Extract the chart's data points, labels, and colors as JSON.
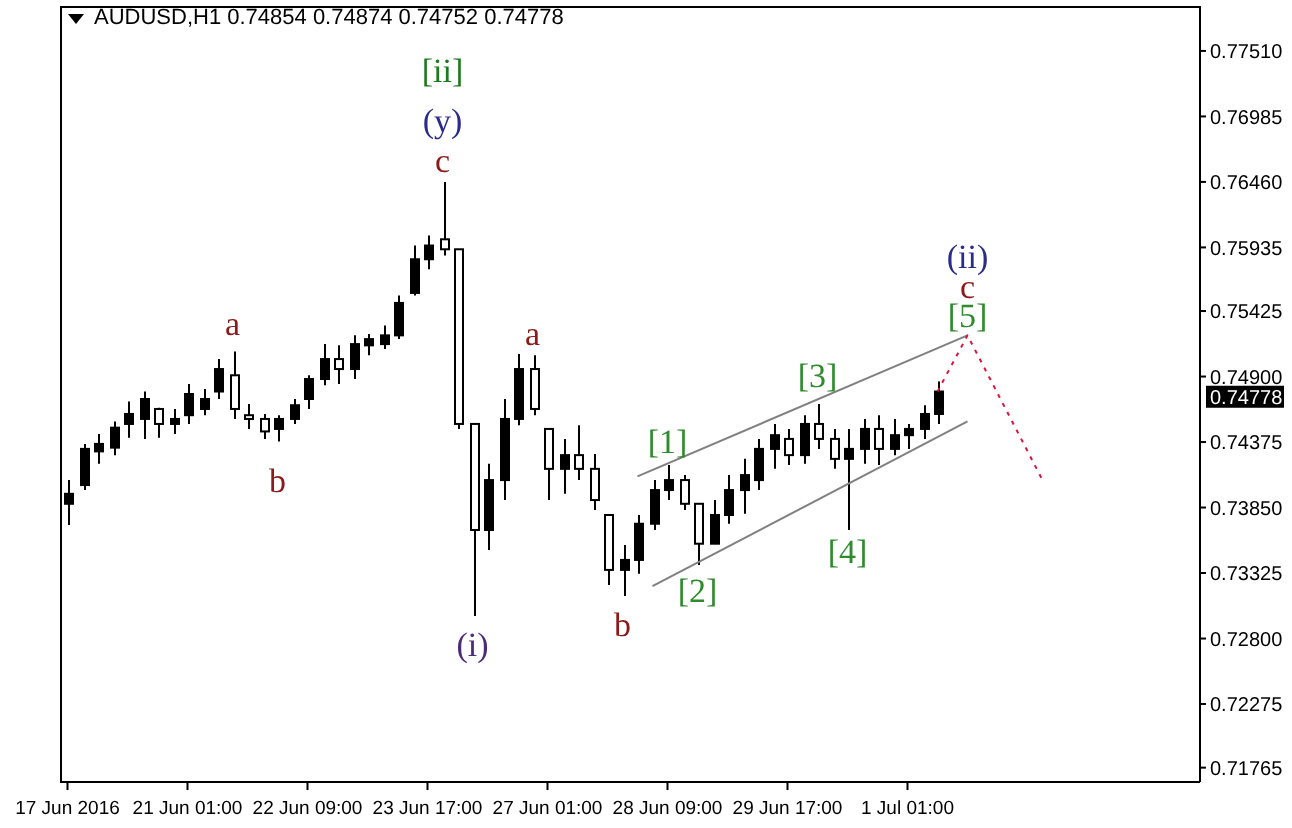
{
  "chart_data": {
    "type": "candlestick",
    "title": "AUDUSD,H1 0.74854 0.74874 0.74752 0.74778",
    "color": "#000000",
    "categories": [
      "17 Jun 2016",
      null,
      null,
      null,
      null,
      null,
      null,
      null,
      "21 Jun 01:00",
      null,
      null,
      null,
      null,
      null,
      null,
      null,
      "22 Jun 09:00",
      null,
      null,
      null,
      null,
      null,
      null,
      null,
      "23 Jun 17:00",
      null,
      null,
      null,
      null,
      null,
      null,
      null,
      "27 Jun 01:00",
      null,
      null,
      null,
      null,
      null,
      null,
      null,
      "28 Jun 09:00",
      null,
      null,
      null,
      null,
      null,
      null,
      null,
      "29 Jun 17:00",
      null,
      null,
      null,
      null,
      null,
      null,
      null,
      "1 Jul 01:00",
      null,
      null,
      null,
      null,
      null,
      null,
      null,
      null,
      null,
      null,
      null,
      null,
      null,
      null,
      null,
      null,
      null,
      null,
      null
    ],
    "ohlc": [
      [
        0.7388,
        0.7407,
        0.7371,
        0.7396
      ],
      [
        0.7403,
        0.7436,
        0.7399,
        0.7432
      ],
      [
        0.743,
        0.7444,
        0.742,
        0.7436
      ],
      [
        0.7433,
        0.7454,
        0.7427,
        0.7449
      ],
      [
        0.7452,
        0.747,
        0.7441,
        0.746
      ],
      [
        0.7456,
        0.7478,
        0.744,
        0.7472
      ],
      [
        0.7464,
        0.7465,
        0.7441,
        0.7452
      ],
      [
        0.7452,
        0.7464,
        0.7444,
        0.7456
      ],
      [
        0.7459,
        0.7484,
        0.7452,
        0.7476
      ],
      [
        0.7464,
        0.748,
        0.7459,
        0.7472
      ],
      [
        0.7478,
        0.7504,
        0.7472,
        0.7496
      ],
      [
        0.7491,
        0.751,
        0.7456,
        0.7464
      ],
      [
        0.7459,
        0.7468,
        0.7448,
        0.7456
      ],
      [
        0.7456,
        0.746,
        0.744,
        0.7446
      ],
      [
        0.7448,
        0.7459,
        0.7438,
        0.7456
      ],
      [
        0.7456,
        0.7472,
        0.7452,
        0.7467
      ],
      [
        0.7472,
        0.7491,
        0.7464,
        0.7488
      ],
      [
        0.7488,
        0.7516,
        0.7483,
        0.7504
      ],
      [
        0.7504,
        0.7515,
        0.7484,
        0.7496
      ],
      [
        0.7496,
        0.7523,
        0.7488,
        0.7516
      ],
      [
        0.7515,
        0.7524,
        0.7507,
        0.752
      ],
      [
        0.7516,
        0.7531,
        0.7512,
        0.7523
      ],
      [
        0.7523,
        0.7555,
        0.752,
        0.7549
      ],
      [
        0.7557,
        0.7595,
        0.7555,
        0.7584
      ],
      [
        0.7584,
        0.7603,
        0.7576,
        0.7595
      ],
      [
        0.76,
        0.7646,
        0.7587,
        0.7592
      ],
      [
        0.7592,
        0.7592,
        0.7448,
        0.7452
      ],
      [
        0.7452,
        0.7452,
        0.7298,
        0.7367
      ],
      [
        0.7367,
        0.742,
        0.7351,
        0.7407
      ],
      [
        0.7407,
        0.7472,
        0.7391,
        0.7456
      ],
      [
        0.7456,
        0.7508,
        0.7451,
        0.7496
      ],
      [
        0.7496,
        0.7507,
        0.7459,
        0.7464
      ],
      [
        0.7448,
        0.7448,
        0.7391,
        0.7416
      ],
      [
        0.7416,
        0.744,
        0.7396,
        0.7427
      ],
      [
        0.7427,
        0.7451,
        0.7407,
        0.7416
      ],
      [
        0.7416,
        0.7428,
        0.7383,
        0.7391
      ],
      [
        0.7379,
        0.7379,
        0.7323,
        0.7335
      ],
      [
        0.7335,
        0.7355,
        0.7314,
        0.7343
      ],
      [
        0.7343,
        0.7379,
        0.7332,
        0.7372
      ],
      [
        0.7372,
        0.7407,
        0.7367,
        0.7399
      ],
      [
        0.7399,
        0.7419,
        0.7391,
        0.7407
      ],
      [
        0.7407,
        0.7411,
        0.7383,
        0.7388
      ],
      [
        0.7388,
        0.7388,
        0.7339,
        0.7356
      ],
      [
        0.7356,
        0.7391,
        0.7356,
        0.7379
      ],
      [
        0.7379,
        0.7411,
        0.7372,
        0.7399
      ],
      [
        0.7399,
        0.7424,
        0.738,
        0.7411
      ],
      [
        0.7407,
        0.744,
        0.7399,
        0.7432
      ],
      [
        0.7432,
        0.7452,
        0.7416,
        0.7443
      ],
      [
        0.744,
        0.7448,
        0.7419,
        0.7427
      ],
      [
        0.7427,
        0.7459,
        0.742,
        0.7452
      ],
      [
        0.7452,
        0.7468,
        0.7432,
        0.744
      ],
      [
        0.744,
        0.7448,
        0.7416,
        0.7424
      ],
      [
        0.7424,
        0.7448,
        0.7367,
        0.7432
      ],
      [
        0.7432,
        0.7456,
        0.742,
        0.7448
      ],
      [
        0.7448,
        0.7459,
        0.7419,
        0.7432
      ],
      [
        0.7432,
        0.7456,
        0.7427,
        0.7443
      ],
      [
        0.7443,
        0.7452,
        0.7432,
        0.7448
      ],
      [
        0.7448,
        0.7467,
        0.744,
        0.746
      ],
      [
        0.746,
        0.7486,
        0.7452,
        0.7478
      ],
      null,
      null,
      null,
      null,
      null,
      null,
      null,
      null,
      null,
      null,
      null,
      null,
      null,
      null,
      null,
      null,
      null
    ],
    "series": [
      {
        "type": "line",
        "color": "#808080",
        "line_style": "solid",
        "values": [
          null,
          null,
          null,
          null,
          null,
          null,
          null,
          null,
          null,
          null,
          null,
          null,
          null,
          null,
          null,
          null,
          null,
          null,
          null,
          null,
          null,
          null,
          null,
          null,
          null,
          null,
          null,
          null,
          null,
          null,
          null,
          null,
          null,
          null,
          null,
          null,
          null,
          null,
          0.741,
          null,
          null,
          null,
          null,
          null,
          null,
          null,
          null,
          null,
          null,
          null,
          null,
          null,
          null,
          null,
          null,
          null,
          null,
          null,
          null,
          null,
          0.7523,
          null,
          null,
          null,
          null,
          null,
          null,
          null,
          null,
          null,
          null,
          null,
          null,
          null,
          null,
          null
        ]
      },
      {
        "type": "line",
        "color": "#808080",
        "line_style": "solid",
        "values": [
          null,
          null,
          null,
          null,
          null,
          null,
          null,
          null,
          null,
          null,
          null,
          null,
          null,
          null,
          null,
          null,
          null,
          null,
          null,
          null,
          null,
          null,
          null,
          null,
          null,
          null,
          null,
          null,
          null,
          null,
          null,
          null,
          null,
          null,
          null,
          null,
          null,
          null,
          null,
          0.7322,
          null,
          null,
          null,
          null,
          null,
          null,
          null,
          null,
          null,
          null,
          null,
          null,
          null,
          null,
          null,
          null,
          null,
          null,
          null,
          null,
          0.7454,
          null,
          null,
          null,
          null,
          null,
          null,
          null,
          null,
          null,
          null,
          null,
          null,
          null,
          null,
          null
        ]
      },
      {
        "type": "line",
        "color": "#dc143c",
        "line_style": "dotted",
        "values": [
          null,
          null,
          null,
          null,
          null,
          null,
          null,
          null,
          null,
          null,
          null,
          null,
          null,
          null,
          null,
          null,
          null,
          null,
          null,
          null,
          null,
          null,
          null,
          null,
          null,
          null,
          null,
          null,
          null,
          null,
          null,
          null,
          null,
          null,
          null,
          null,
          null,
          null,
          null,
          null,
          null,
          null,
          null,
          null,
          null,
          null,
          null,
          null,
          null,
          null,
          null,
          null,
          null,
          null,
          null,
          null,
          null,
          null,
          0.7478,
          null,
          0.7523,
          null,
          null,
          null,
          null,
          0.7407,
          null,
          null,
          null,
          null,
          null,
          null,
          null,
          null,
          null,
          null
        ]
      }
    ],
    "ylim": [
      0.7165,
      0.7787
    ],
    "yticks": [
      {
        "value": 0.71765,
        "label": "0.71765"
      },
      {
        "value": 0.72275,
        "label": "0.72275"
      },
      {
        "value": 0.728,
        "label": "0.72800"
      },
      {
        "value": 0.73325,
        "label": "0.73325"
      },
      {
        "value": 0.7385,
        "label": "0.73850"
      },
      {
        "value": 0.74375,
        "label": "0.74375"
      },
      {
        "value": 0.749,
        "label": "0.74900"
      },
      {
        "value": 0.75425,
        "label": "0.75425"
      },
      {
        "value": 0.75935,
        "label": "0.75935"
      },
      {
        "value": 0.7646,
        "label": "0.76460"
      },
      {
        "value": 0.76985,
        "label": "0.76985"
      },
      {
        "value": 0.7751,
        "label": "0.77510"
      }
    ],
    "annotations": [
      "[ii]",
      "(y)",
      "c",
      "a",
      "b",
      "(i)",
      "a",
      "[1]",
      "b",
      "[2]",
      "[3]",
      "[4]",
      "(ii)",
      "c",
      "[5]",
      "0.74778"
    ]
  }
}
